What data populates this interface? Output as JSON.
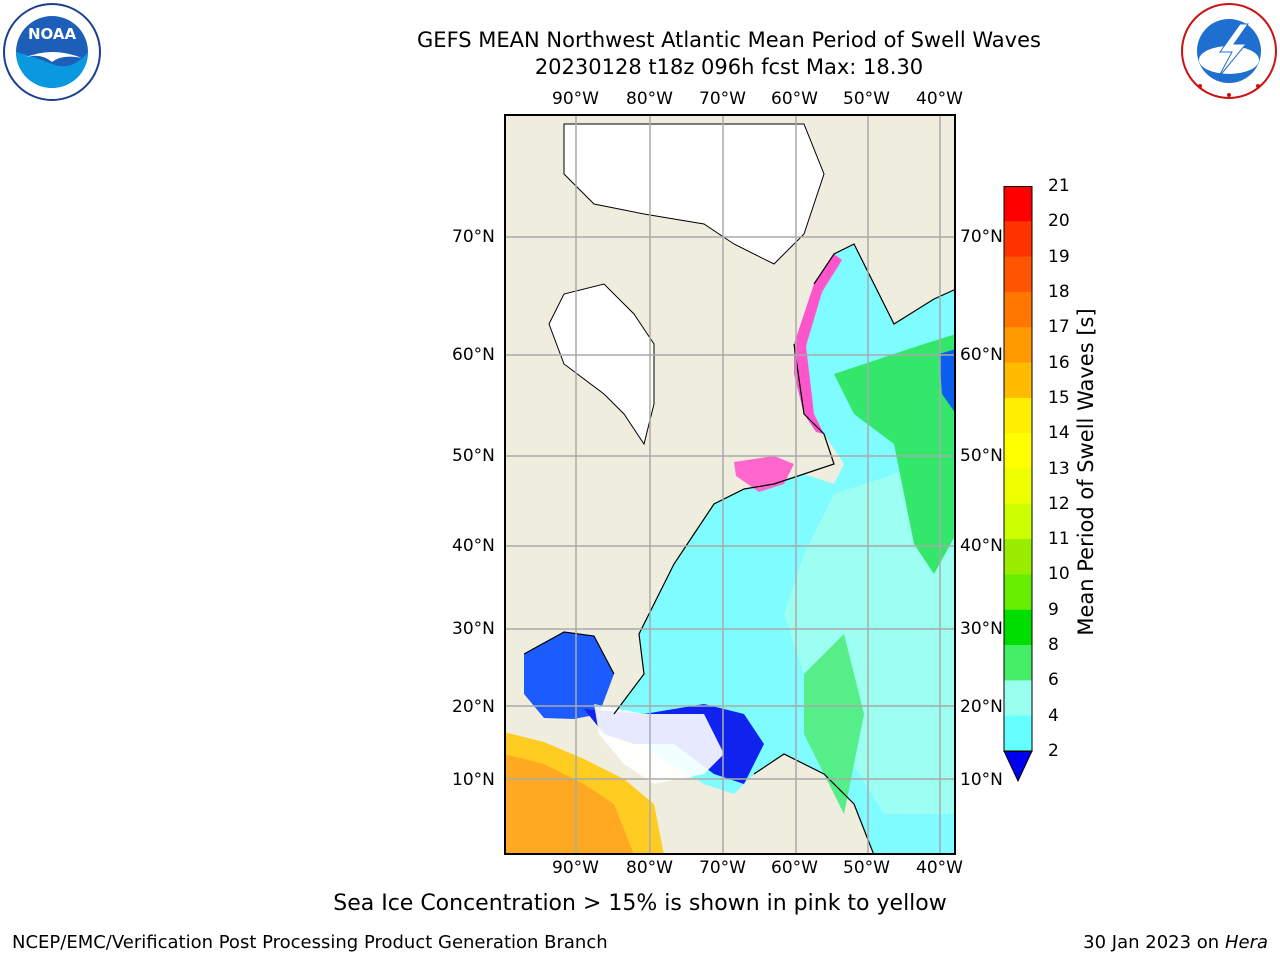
{
  "header": {
    "title_line1": "GEFS MEAN Northwest Atlantic Mean Period of Swell Waves",
    "title_line2": "20230128 t18z 096h fcst   Max: 18.30"
  },
  "logos": {
    "left_text": "NOAA",
    "left_ring_text": "NATIONAL OCEANIC AND ATMOSPHERIC ADMINISTRATION · U.S. DEPARTMENT OF COMMERCE",
    "right_ring_text": "NATIONAL WEATHER SERVICE"
  },
  "map": {
    "lon_labels": [
      "90°W",
      "80°W",
      "70°W",
      "60°W",
      "50°W",
      "40°W"
    ],
    "lat_labels": [
      "70°N",
      "60°N",
      "50°N",
      "40°N",
      "30°N",
      "20°N",
      "10°N"
    ]
  },
  "colorbar": {
    "label": "Mean Period of Swell Waves [s]",
    "ticks": [
      "21",
      "20",
      "19",
      "18",
      "17",
      "16",
      "15",
      "14",
      "13",
      "12",
      "11",
      "10",
      "9",
      "8",
      "6",
      "4",
      "2"
    ],
    "colors": [
      "#ff0000",
      "#ff3300",
      "#ff5500",
      "#ff7700",
      "#ff9900",
      "#ffbb00",
      "#ffee00",
      "#ffff00",
      "#eeff00",
      "#ccff00",
      "#99ee00",
      "#66ee00",
      "#00dd00",
      "#44ee66",
      "#99ffee",
      "#66ffff",
      "#33ffff",
      "#00eeff",
      "#0088ff",
      "#0000ee"
    ]
  },
  "footer": {
    "note": "Sea Ice Concentration > 15% is shown in pink to yellow",
    "left": "NCEP/EMC/Verification Post Processing Product Generation Branch",
    "right_date": "30 Jan 2023 on ",
    "right_host": "Hera"
  }
}
